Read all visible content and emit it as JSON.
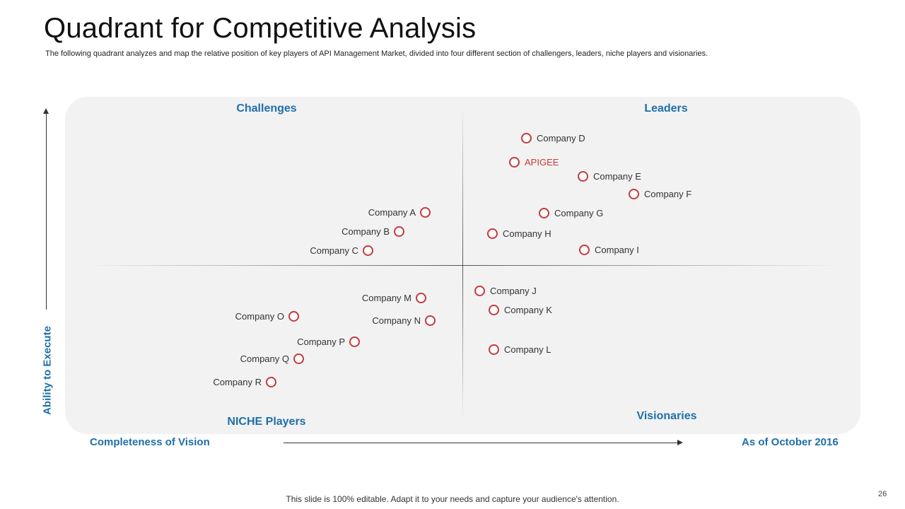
{
  "slide": {
    "title": "Quadrant for Competitive Analysis",
    "subtitle": "The following quadrant analyzes and map the relative position of  key players of API  Management Market,  divided into four different section of challengers, leaders, niche players and visionaries.",
    "footer": "This slide is 100% editable. Adapt it to your needs and capture your audience's attention.",
    "page_number": "26"
  },
  "quadrants": {
    "top_left": "Challenges",
    "top_right": "Leaders",
    "bottom_left": "NICHE Players",
    "bottom_right": "Visionaries"
  },
  "axes": {
    "y_label": "Ability to Execute",
    "x_label": "Completeness of Vision",
    "date": "As of October 2016"
  },
  "colors": {
    "accent_blue": "#1f6fa8",
    "marker_red": "#c6393b",
    "panel_gray": "#f2f2f2"
  },
  "companies": [
    {
      "name": "Company D",
      "quadrant": "Leaders",
      "highlight": false
    },
    {
      "name": "APIGEE",
      "quadrant": "Leaders",
      "highlight": true
    },
    {
      "name": "Company E",
      "quadrant": "Leaders",
      "highlight": false
    },
    {
      "name": "Company F",
      "quadrant": "Leaders",
      "highlight": false
    },
    {
      "name": "Company G",
      "quadrant": "Leaders",
      "highlight": false
    },
    {
      "name": "Company H",
      "quadrant": "Leaders",
      "highlight": false
    },
    {
      "name": "Company I",
      "quadrant": "Leaders",
      "highlight": false
    },
    {
      "name": "Company A",
      "quadrant": "Challenges",
      "highlight": false
    },
    {
      "name": "Company B",
      "quadrant": "Challenges",
      "highlight": false
    },
    {
      "name": "Company C",
      "quadrant": "Challenges",
      "highlight": false
    },
    {
      "name": "Company J",
      "quadrant": "Visionaries",
      "highlight": false
    },
    {
      "name": "Company K",
      "quadrant": "Visionaries",
      "highlight": false
    },
    {
      "name": "Company L",
      "quadrant": "Visionaries",
      "highlight": false
    },
    {
      "name": "Company M",
      "quadrant": "NICHE Players",
      "highlight": false
    },
    {
      "name": "Company N",
      "quadrant": "NICHE Players",
      "highlight": false
    },
    {
      "name": "Company O",
      "quadrant": "NICHE Players",
      "highlight": false
    },
    {
      "name": "Company P",
      "quadrant": "NICHE Players",
      "highlight": false
    },
    {
      "name": "Company Q",
      "quadrant": "NICHE Players",
      "highlight": false
    },
    {
      "name": "Company R",
      "quadrant": "NICHE Players",
      "highlight": false
    }
  ]
}
